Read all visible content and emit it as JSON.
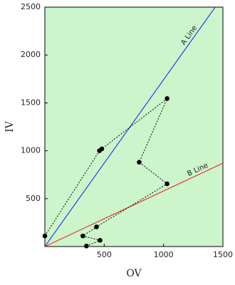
{
  "chart_data": {
    "type": "line",
    "xlabel": "OV",
    "ylabel": "IV",
    "xlim": [
      0,
      1500
    ],
    "ylim": [
      0,
      2500
    ],
    "xticks": [
      500,
      1000,
      1500
    ],
    "yticks": [
      500,
      1000,
      1500,
      2000,
      2500
    ],
    "background": "#ccf5cc",
    "series": [
      {
        "name": "A Line",
        "color": "#2a3fe8",
        "x": [
          0,
          1435
        ],
        "values": [
          0,
          2500
        ]
      },
      {
        "name": "B Line",
        "color": "#e8382a",
        "x": [
          0,
          1500
        ],
        "values": [
          0,
          870
        ]
      },
      {
        "color": "#000000",
        "dashed": true,
        "markers": true,
        "x": [
          0,
          460,
          480,
          1030,
          795,
          1030,
          435,
          320,
          465,
          350
        ],
        "values": [
          110,
          1000,
          1020,
          1545,
          880,
          655,
          205,
          110,
          65,
          5
        ]
      }
    ]
  }
}
